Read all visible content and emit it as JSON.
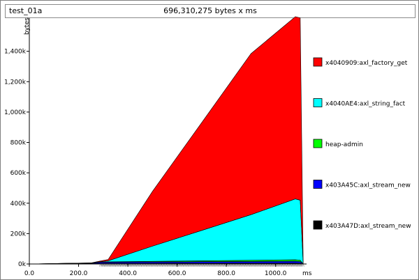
{
  "header": {
    "program": "test_01a",
    "total": "696,310,275 bytes x ms"
  },
  "chart_data": {
    "type": "area",
    "stacked": true,
    "title": "",
    "xlabel": "ms",
    "ylabel": "bytes",
    "xlim": [
      0,
      1120
    ],
    "ylim": [
      0,
      1600000
    ],
    "x_ticks": [
      "0.0",
      "200.0",
      "400.0",
      "600.0",
      "800.0",
      "1000.0"
    ],
    "x_tick_values": [
      0,
      200,
      400,
      600,
      800,
      1000
    ],
    "y_ticks": [
      "0k",
      "200k",
      "400k",
      "600k",
      "800k",
      "1,000k",
      "1,200k",
      "1,400k"
    ],
    "y_tick_values": [
      0,
      200000,
      400000,
      600000,
      800000,
      1000000,
      1200000,
      1400000
    ],
    "x": [
      0,
      150,
      250,
      290,
      320,
      500,
      700,
      900,
      1080,
      1100,
      1112
    ],
    "series": [
      {
        "name": "x403A47D:axl_stream_new",
        "color": "#000000",
        "values": [
          0,
          1000,
          2000,
          3000,
          4000,
          4500,
          5000,
          5500,
          6000,
          5000,
          0
        ]
      },
      {
        "name": "x403A45C:axl_stream_new",
        "color": "#0000ff",
        "values": [
          0,
          2000,
          3000,
          8000,
          8000,
          9000,
          10000,
          11000,
          12000,
          11000,
          0
        ]
      },
      {
        "name": "heap-admin",
        "color": "#00ff00",
        "values": [
          0,
          1000,
          2000,
          2000,
          2000,
          4000,
          6000,
          8000,
          10000,
          9000,
          0
        ]
      },
      {
        "name": "x4040AE4:axl_string_fact",
        "color": "#00ffff",
        "values": [
          0,
          0,
          0,
          2000,
          7000,
          100000,
          200000,
          300000,
          400000,
          395000,
          0
        ]
      },
      {
        "name": "x4040909:axl_factory_get",
        "color": "#ff0000",
        "values": [
          0,
          0,
          0,
          5000,
          9000,
          360000,
          710000,
          1060000,
          1200000,
          1200000,
          0
        ]
      }
    ],
    "legend": {
      "placement": "right",
      "order": [
        "x4040909:axl_factory_get",
        "x4040AE4:axl_string_fact",
        "heap-admin",
        "x403A45C:axl_stream_new",
        "x403A47D:axl_stream_new"
      ]
    },
    "grid": false
  }
}
